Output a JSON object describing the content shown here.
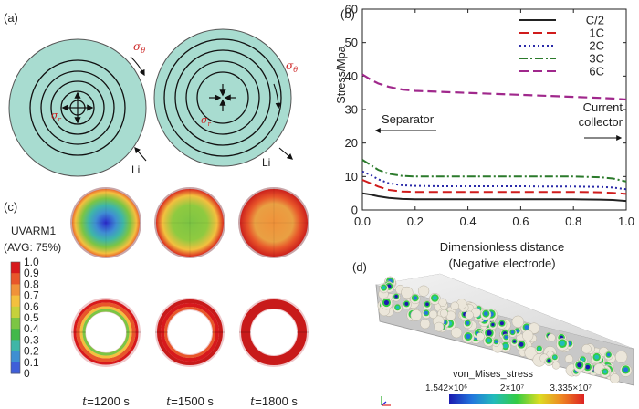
{
  "panels": {
    "a": {
      "label": "(a)",
      "sigma_theta": "σ",
      "sigma_theta_sub": "θ",
      "sigma_r": "σ",
      "sigma_r_sub": "r",
      "li_left": "Li",
      "li_right": "Li",
      "colors": {
        "particle": "#a8dcd0",
        "ring": "#111111",
        "sigma": "#cc2222"
      }
    },
    "b": {
      "label": "(b)"
    },
    "c": {
      "label": "(c)",
      "var_name": "UVARM1",
      "avg": "(AVG: 75%)",
      "legend_ticks": [
        "1.0",
        "0.9",
        "0.8",
        "0.7",
        "0.6",
        "0.5",
        "0.4",
        "0.3",
        "0.2",
        "0.1",
        "0"
      ],
      "legend_colors": [
        "#d7191c",
        "#e8562a",
        "#f0923a",
        "#f3c03f",
        "#c6d13b",
        "#7cc544",
        "#42b84a",
        "#3fb6a7",
        "#3f8fd2",
        "#3f5fd9",
        "#2b2bcf"
      ],
      "times": [
        {
          "t": "t",
          "value": "=1200 s"
        },
        {
          "t": "t",
          "value": "=1500 s"
        },
        {
          "t": "t",
          "value": "=1800 s"
        }
      ]
    },
    "d": {
      "label": "(d)",
      "bar_title": "von_Mises_stress",
      "bar_min": "1.542×10⁶",
      "bar_mid": "2×10⁷",
      "bar_max": "3.335×10⁷",
      "bar_colors": [
        "#1b1bb0",
        "#2277dd",
        "#22bbbb",
        "#33cc44",
        "#dddd22",
        "#ee8822",
        "#dd2222"
      ]
    }
  },
  "chart_data": {
    "type": "line",
    "ylabel": "Stress/Mpa",
    "xlabel": "Dimensionless distance",
    "xlabel2": "(Negative electrode)",
    "xlim": [
      0,
      1.0
    ],
    "ylim": [
      0,
      60
    ],
    "xticks": [
      "0.0",
      "0.2",
      "0.4",
      "0.6",
      "0.8",
      "1.0"
    ],
    "yticks": [
      "0",
      "10",
      "20",
      "30",
      "40",
      "50",
      "60"
    ],
    "annotations": {
      "left": "Separator",
      "right_line1": "Current",
      "right_line2": "collector"
    },
    "legend_position": "top-right",
    "x": [
      0,
      0.03,
      0.06,
      0.1,
      0.15,
      0.2,
      0.3,
      0.4,
      0.5,
      0.6,
      0.7,
      0.8,
      0.9,
      0.95,
      1.0
    ],
    "series": [
      {
        "name": "C/2",
        "color": "#222222",
        "dash": "",
        "values": [
          5.0,
          4.6,
          4.1,
          3.6,
          3.3,
          3.2,
          3.2,
          3.2,
          3.2,
          3.2,
          3.2,
          3.2,
          3.1,
          3.0,
          2.7
        ]
      },
      {
        "name": "1C",
        "color": "#d01c1c",
        "dash": "10,5",
        "values": [
          9.0,
          8.0,
          7.0,
          6.0,
          5.5,
          5.4,
          5.4,
          5.4,
          5.4,
          5.4,
          5.4,
          5.4,
          5.3,
          5.1,
          4.8
        ]
      },
      {
        "name": "2C",
        "color": "#2a2aa8",
        "dash": "2,3",
        "values": [
          11.5,
          10.5,
          9.2,
          8.0,
          7.4,
          7.2,
          7.1,
          7.1,
          7.1,
          7.1,
          7.0,
          7.0,
          6.9,
          6.7,
          6.2
        ]
      },
      {
        "name": "3C",
        "color": "#2b7a2b",
        "dash": "9,3,2,3",
        "values": [
          15.0,
          13.5,
          12.0,
          10.8,
          10.2,
          10.0,
          10.0,
          10.0,
          10.0,
          10.0,
          10.0,
          10.0,
          9.8,
          9.4,
          8.5
        ]
      },
      {
        "name": "6C",
        "color": "#a0288c",
        "dash": "10,5",
        "values": [
          40.5,
          39.0,
          37.8,
          36.8,
          36.0,
          35.6,
          35.3,
          35.0,
          34.7,
          34.4,
          34.1,
          33.8,
          33.5,
          33.3,
          33.0
        ]
      }
    ]
  }
}
